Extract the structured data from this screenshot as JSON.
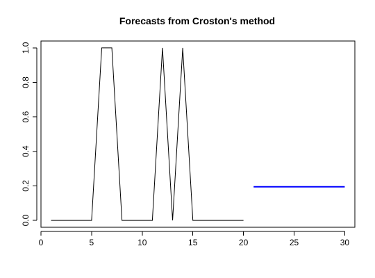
{
  "chart_data": {
    "type": "line",
    "title": "Forecasts from Croston's method",
    "xlabel": "",
    "ylabel": "",
    "xlim": [
      0,
      31
    ],
    "ylim": [
      -0.04,
      1.04
    ],
    "x_ticks": [
      0,
      5,
      10,
      15,
      20,
      25,
      30
    ],
    "y_ticks": [
      0.0,
      0.2,
      0.4,
      0.6,
      0.8,
      1.0
    ],
    "x_tick_labels": [
      "0",
      "5",
      "10",
      "15",
      "20",
      "25",
      "30"
    ],
    "y_tick_labels": [
      "0.0",
      "0.2",
      "0.4",
      "0.6",
      "0.8",
      "1.0"
    ],
    "grid": false,
    "series": [
      {
        "color": "#000000",
        "x": [
          1,
          2,
          3,
          4,
          5,
          6,
          7,
          8,
          9,
          10,
          11,
          12,
          13,
          14,
          15,
          16,
          17,
          18,
          19,
          20
        ],
        "y": [
          0,
          0,
          0,
          0,
          0,
          1,
          1,
          0,
          0,
          0,
          0,
          1,
          0,
          1,
          0,
          0,
          0,
          0,
          0,
          0
        ]
      },
      {
        "color": "#0000ff",
        "x": [
          21,
          22,
          23,
          24,
          25,
          26,
          27,
          28,
          29,
          30
        ],
        "y": [
          0.195,
          0.195,
          0.195,
          0.195,
          0.195,
          0.195,
          0.195,
          0.195,
          0.195,
          0.195
        ]
      }
    ]
  }
}
